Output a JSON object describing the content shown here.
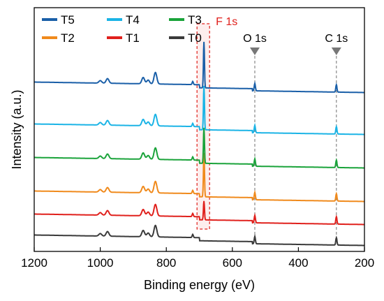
{
  "chart_data": {
    "type": "line",
    "xlabel": "Binding energy (eV)",
    "ylabel": "Intensity (a.u.)",
    "xlim": [
      1200,
      200
    ],
    "x_reversed": true,
    "xticks": [
      1200,
      1000,
      800,
      600,
      400,
      200
    ],
    "grid": false,
    "legend_placement": "top-left",
    "legend_order": [
      "T5",
      "T4",
      "T3",
      "T2",
      "T1",
      "T0"
    ],
    "series": [
      {
        "name": "T0",
        "color": "#3a3a3a",
        "baseline": 0.0,
        "f1s_height": 0.0
      },
      {
        "name": "T1",
        "color": "#e0201c",
        "baseline": 1.0,
        "f1s_height": 0.9
      },
      {
        "name": "T2",
        "color": "#f08a1c",
        "baseline": 2.1,
        "f1s_height": 2.1
      },
      {
        "name": "T3",
        "color": "#1aa33a",
        "baseline": 3.7,
        "f1s_height": 1.7
      },
      {
        "name": "T4",
        "color": "#1bb4e6",
        "baseline": 5.3,
        "f1s_height": 2.1
      },
      {
        "name": "T5",
        "color": "#1a5fa8",
        "baseline": 7.3,
        "f1s_height": 2.2
      }
    ],
    "features": [
      {
        "x": 1000,
        "height": 0.12
      },
      {
        "x": 978,
        "height": 0.22
      },
      {
        "x": 870,
        "height": 0.3
      },
      {
        "x": 855,
        "height": 0.18
      },
      {
        "x": 833,
        "height": 0.55
      },
      {
        "x": 720,
        "height": 0.15
      },
      {
        "x": 686,
        "height": 0.0,
        "role": "F"
      },
      {
        "x": 532,
        "height": 0.35
      },
      {
        "x": 285,
        "height": 0.35
      }
    ],
    "annotations": [
      {
        "label": "F 1s",
        "x": 688,
        "color": "#e0201c",
        "style": "dashed-box"
      },
      {
        "label": "O 1s",
        "x": 532,
        "style": "marker-dashed-line"
      },
      {
        "label": "C 1s",
        "x": 285,
        "style": "marker-dashed-line"
      }
    ]
  }
}
